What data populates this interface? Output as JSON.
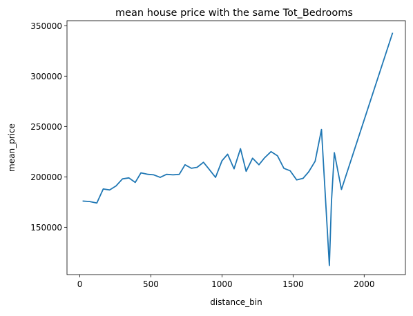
{
  "chart_data": {
    "type": "line",
    "title": "mean house price with the same Tot_Bedrooms",
    "xlabel": "distance_bin",
    "ylabel": "mean_price",
    "xlim": [
      -90,
      2290
    ],
    "ylim": [
      103000,
      355000
    ],
    "xticks": [
      0,
      500,
      1000,
      1500,
      2000
    ],
    "yticks": [
      150000,
      200000,
      250000,
      300000,
      350000
    ],
    "grid": false,
    "line_color": "#1f77b4",
    "series": [
      {
        "x": [
          20,
          70,
          120,
          165,
          210,
          255,
          300,
          345,
          390,
          430,
          480,
          520,
          565,
          610,
          655,
          700,
          740,
          785,
          825,
          870,
          910,
          955,
          1000,
          1040,
          1085,
          1130,
          1170,
          1215,
          1260,
          1300,
          1345,
          1390,
          1435,
          1480,
          1525,
          1570,
          1610,
          1655,
          1700,
          1755,
          1770,
          1790,
          1840,
          2200
        ],
        "y": [
          176000,
          175500,
          174000,
          188000,
          187000,
          191000,
          198000,
          199000,
          194500,
          204000,
          202500,
          202000,
          199500,
          202500,
          202000,
          202500,
          212000,
          208500,
          209500,
          214500,
          207500,
          199500,
          216000,
          222500,
          208000,
          228000,
          205500,
          218500,
          212000,
          219000,
          225000,
          221000,
          208500,
          206000,
          197000,
          198500,
          205000,
          215500,
          247000,
          112000,
          175000,
          224000,
          187500,
          343000
        ]
      }
    ]
  }
}
